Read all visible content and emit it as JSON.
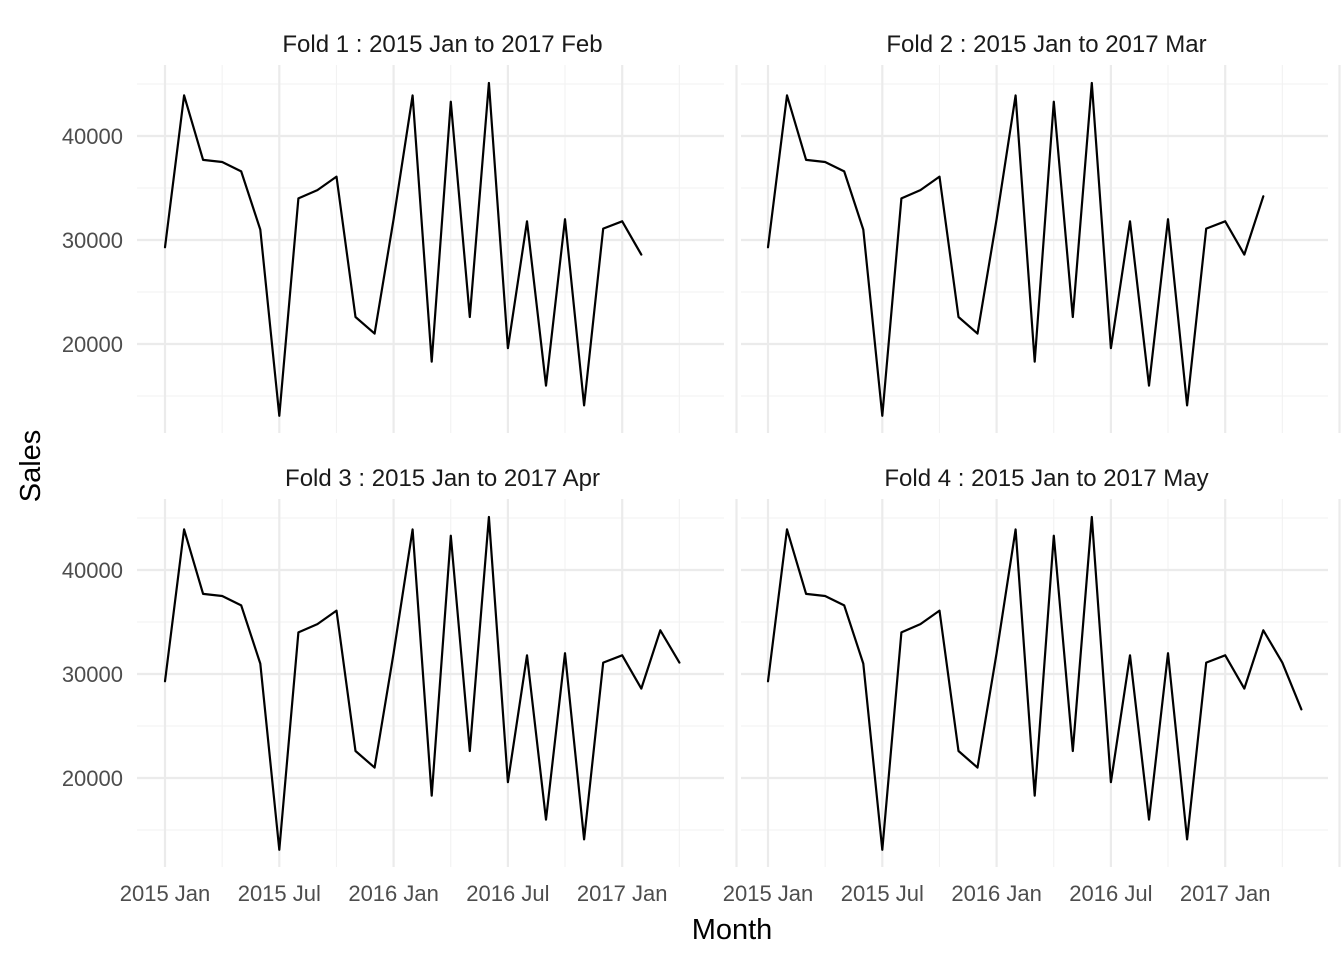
{
  "chart_data": [
    {
      "type": "line",
      "title": "Fold 1 :  2015 Jan to 2017 Feb",
      "xlabel": "Month",
      "ylabel": "Sales",
      "x_ticks": [
        "2015 Jan",
        "2015 Jul",
        "2016 Jan",
        "2016 Jul",
        "2017 Jan"
      ],
      "y_ticks": [
        20000,
        30000,
        40000
      ],
      "grid": true,
      "x": [
        "2015-01",
        "2015-02",
        "2015-03",
        "2015-04",
        "2015-05",
        "2015-06",
        "2015-07",
        "2015-08",
        "2015-09",
        "2015-10",
        "2015-11",
        "2015-12",
        "2016-01",
        "2016-02",
        "2016-03",
        "2016-04",
        "2016-05",
        "2016-06",
        "2016-07",
        "2016-08",
        "2016-09",
        "2016-10",
        "2016-11",
        "2016-12",
        "2017-01",
        "2017-02"
      ],
      "values": [
        29300,
        43900,
        37700,
        37500,
        36600,
        31000,
        13100,
        34000,
        34800,
        36100,
        22600,
        21000,
        32000,
        43900,
        18300,
        43300,
        22600,
        45100,
        19600,
        31800,
        16000,
        32000,
        14100,
        31100,
        31800,
        28600
      ]
    },
    {
      "type": "line",
      "title": "Fold 2 :  2015 Jan to 2017 Mar",
      "xlabel": "Month",
      "ylabel": "Sales",
      "x_ticks": [
        "2015 Jan",
        "2015 Jul",
        "2016 Jan",
        "2016 Jul",
        "2017 Jan"
      ],
      "y_ticks": [
        20000,
        30000,
        40000
      ],
      "grid": true,
      "x": [
        "2015-01",
        "2015-02",
        "2015-03",
        "2015-04",
        "2015-05",
        "2015-06",
        "2015-07",
        "2015-08",
        "2015-09",
        "2015-10",
        "2015-11",
        "2015-12",
        "2016-01",
        "2016-02",
        "2016-03",
        "2016-04",
        "2016-05",
        "2016-06",
        "2016-07",
        "2016-08",
        "2016-09",
        "2016-10",
        "2016-11",
        "2016-12",
        "2017-01",
        "2017-02",
        "2017-03"
      ],
      "values": [
        29300,
        43900,
        37700,
        37500,
        36600,
        31000,
        13100,
        34000,
        34800,
        36100,
        22600,
        21000,
        32000,
        43900,
        18300,
        43300,
        22600,
        45100,
        19600,
        31800,
        16000,
        32000,
        14100,
        31100,
        31800,
        28600,
        34200
      ]
    },
    {
      "type": "line",
      "title": "Fold 3 :  2015 Jan to 2017 Apr",
      "xlabel": "Month",
      "ylabel": "Sales",
      "x_ticks": [
        "2015 Jan",
        "2015 Jul",
        "2016 Jan",
        "2016 Jul",
        "2017 Jan"
      ],
      "y_ticks": [
        20000,
        30000,
        40000
      ],
      "grid": true,
      "x": [
        "2015-01",
        "2015-02",
        "2015-03",
        "2015-04",
        "2015-05",
        "2015-06",
        "2015-07",
        "2015-08",
        "2015-09",
        "2015-10",
        "2015-11",
        "2015-12",
        "2016-01",
        "2016-02",
        "2016-03",
        "2016-04",
        "2016-05",
        "2016-06",
        "2016-07",
        "2016-08",
        "2016-09",
        "2016-10",
        "2016-11",
        "2016-12",
        "2017-01",
        "2017-02",
        "2017-03",
        "2017-04"
      ],
      "values": [
        29300,
        43900,
        37700,
        37500,
        36600,
        31000,
        13100,
        34000,
        34800,
        36100,
        22600,
        21000,
        32000,
        43900,
        18300,
        43300,
        22600,
        45100,
        19600,
        31800,
        16000,
        32000,
        14100,
        31100,
        31800,
        28600,
        34200,
        31100
      ]
    },
    {
      "type": "line",
      "title": "Fold 4 :  2015 Jan to 2017 May",
      "xlabel": "Month",
      "ylabel": "Sales",
      "x_ticks": [
        "2015 Jan",
        "2015 Jul",
        "2016 Jan",
        "2016 Jul",
        "2017 Jan"
      ],
      "y_ticks": [
        20000,
        30000,
        40000
      ],
      "grid": true,
      "x": [
        "2015-01",
        "2015-02",
        "2015-03",
        "2015-04",
        "2015-05",
        "2015-06",
        "2015-07",
        "2015-08",
        "2015-09",
        "2015-10",
        "2015-11",
        "2015-12",
        "2016-01",
        "2016-02",
        "2016-03",
        "2016-04",
        "2016-05",
        "2016-06",
        "2016-07",
        "2016-08",
        "2016-09",
        "2016-10",
        "2016-11",
        "2016-12",
        "2017-01",
        "2017-02",
        "2017-03",
        "2017-04",
        "2017-05"
      ],
      "values": [
        29300,
        43900,
        37700,
        37500,
        36600,
        31000,
        13100,
        34000,
        34800,
        36100,
        22600,
        21000,
        32000,
        43900,
        18300,
        43300,
        22600,
        45100,
        19600,
        31800,
        16000,
        32000,
        14100,
        31100,
        31800,
        28600,
        34200,
        31100,
        26600
      ]
    }
  ],
  "axes": {
    "xlabel": "Month",
    "ylabel": "Sales"
  },
  "colors": {
    "line": "#000000",
    "grid_major": "#ebebeb",
    "grid_minor": "#f2f2f2",
    "text": "#4d4d4d"
  }
}
